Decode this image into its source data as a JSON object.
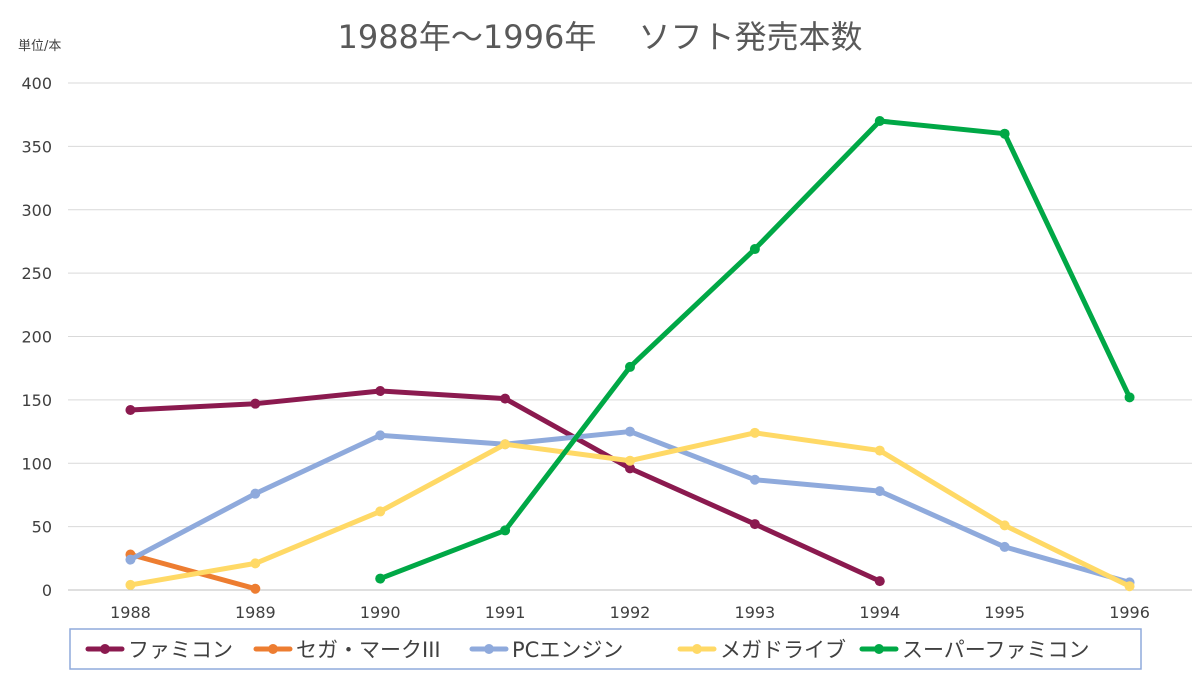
{
  "chart_data": {
    "type": "line",
    "title": "1988年～1996年　 ソフト発売本数",
    "unit_label": "単位/本",
    "xlabel": "",
    "ylabel": "",
    "categories": [
      "1988",
      "1989",
      "1990",
      "1991",
      "1992",
      "1993",
      "1994",
      "1995",
      "1996"
    ],
    "ylim": [
      0,
      400
    ],
    "yticks": [
      0,
      50,
      100,
      150,
      200,
      250,
      300,
      350,
      400
    ],
    "grid": true,
    "legend_position": "bottom",
    "series": [
      {
        "name": "ファミコン",
        "color": "#8B1A4F",
        "values": [
          142,
          147,
          157,
          151,
          96,
          52,
          7,
          null,
          null
        ]
      },
      {
        "name": "セガ・マークIII",
        "color": "#ED7D31",
        "values": [
          28,
          1,
          null,
          null,
          null,
          null,
          null,
          null,
          null
        ]
      },
      {
        "name": "PCエンジン",
        "color": "#8FAADC",
        "values": [
          24,
          76,
          122,
          115,
          125,
          87,
          78,
          34,
          6
        ]
      },
      {
        "name": "メガドライブ",
        "color": "#FFD966",
        "values": [
          4,
          21,
          62,
          115,
          102,
          124,
          110,
          51,
          3
        ]
      },
      {
        "name": "スーパーファミコン",
        "color": "#00A846",
        "values": [
          null,
          null,
          9,
          47,
          176,
          269,
          370,
          360,
          152
        ]
      }
    ]
  }
}
